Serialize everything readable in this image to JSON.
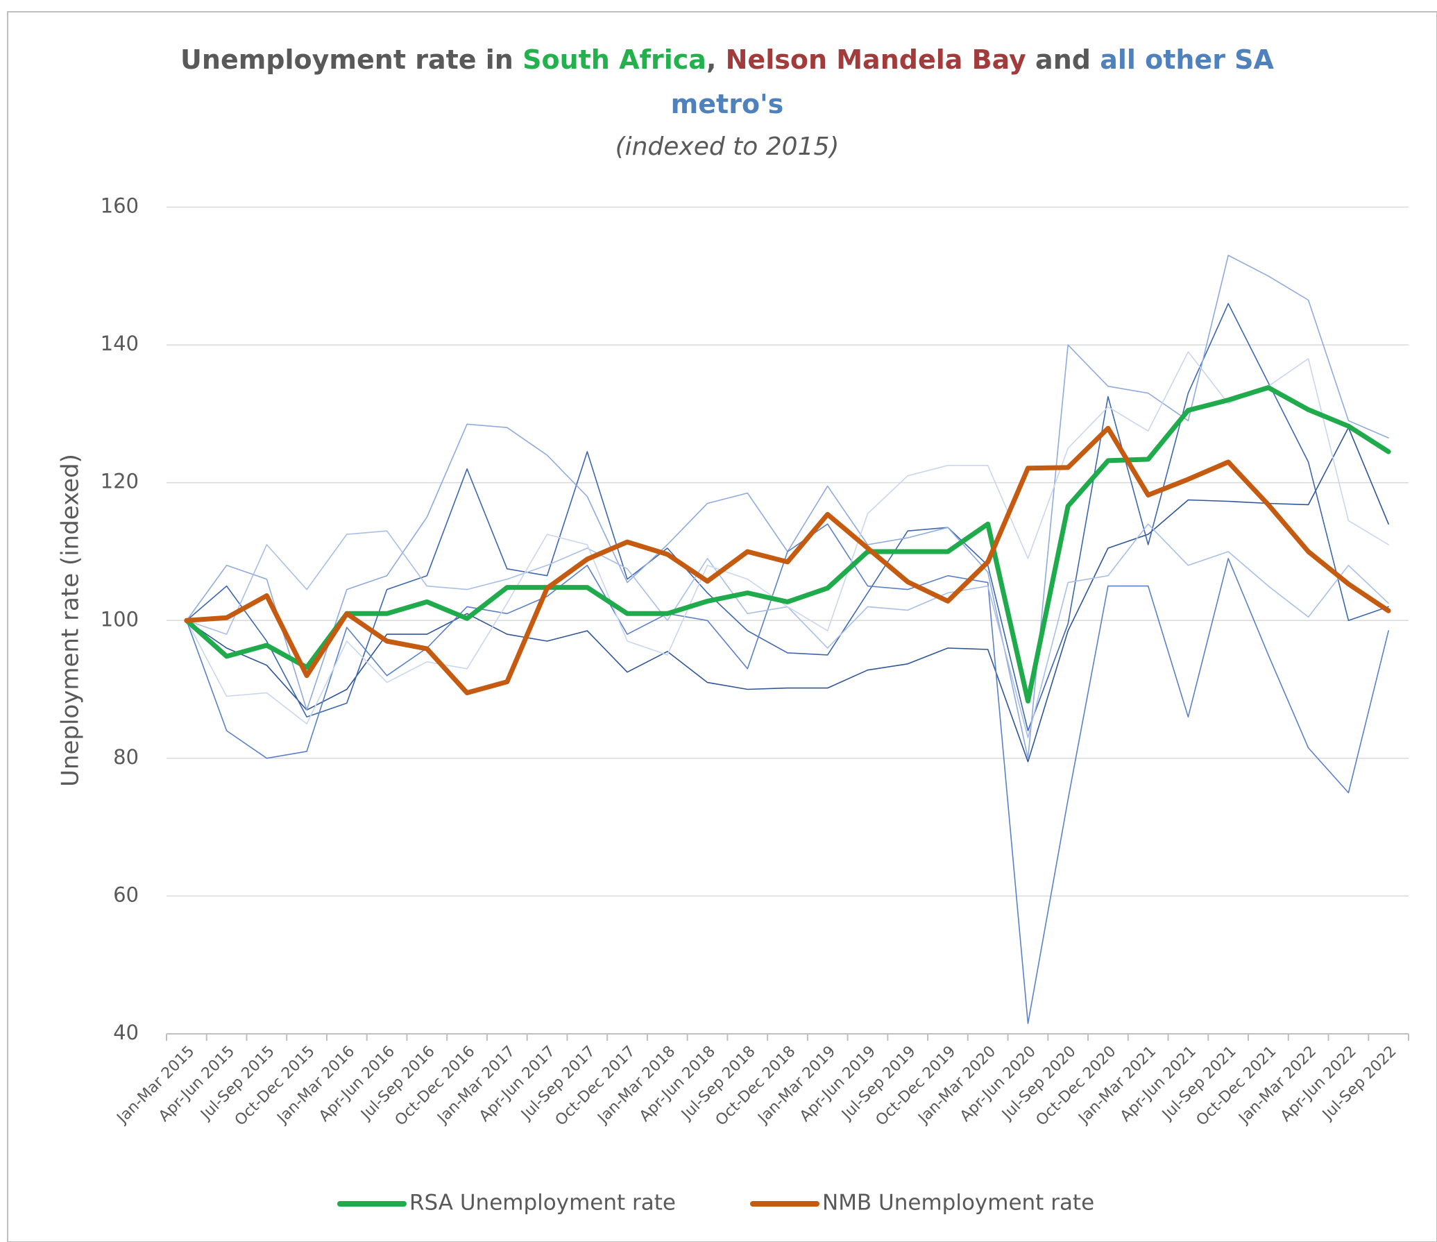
{
  "chart_data": {
    "type": "line",
    "title_parts": [
      {
        "text": "Unemployment rate in ",
        "color": "#595959"
      },
      {
        "text": "South Africa",
        "color": "#22b14c"
      },
      {
        "text": ", ",
        "color": "#595959"
      },
      {
        "text": "Nelson Mandela Bay",
        "color": "#a23b3b"
      },
      {
        "text": " and ",
        "color": "#595959"
      },
      {
        "text": "all other SA",
        "color": "#4f81bd"
      },
      {
        "text": "metro's",
        "color": "#4f81bd"
      }
    ],
    "subtitle": "(indexed to 2015)",
    "y_label": "Uneployment rate (indexed)",
    "categories": [
      "Jan-Mar 2015",
      "Apr-Jun 2015",
      "Jul-Sep 2015",
      "Oct-Dec 2015",
      "Jan-Mar 2016",
      "Apr-Jun 2016",
      "Jul-Sep 2016",
      "Oct-Dec 2016",
      "Jan-Mar 2017",
      "Apr-Jun 2017",
      "Jul-Sep 2017",
      "Oct-Dec 2017",
      "Jan-Mar 2018",
      "Apr-Jun 2018",
      "Jul-Sep 2018",
      "Oct-Dec 2018",
      "Jan-Mar 2019",
      "Apr-Jun 2019",
      "Jul-Sep 2019",
      "Oct-Dec 2019",
      "Jan-Mar 2020",
      "Apr-Jun 2020",
      "Jul-Sep 2020",
      "Oct-Dec 2020",
      "Jan-Mar 2021",
      "Apr-Jun 2021",
      "Jul-Sep 2021",
      "Oct-Dec 2021",
      "Jan-Mar 2022",
      "Apr-Jun 2022",
      "Jul-Sep 2022"
    ],
    "series": [
      {
        "color": "#2f5597",
        "width": 1.6,
        "values": [
          100,
          96,
          93.5,
          87,
          90,
          98,
          98,
          101,
          98,
          97,
          98.5,
          92.5,
          95.5,
          91,
          90,
          90.2,
          90.2,
          92.8,
          93.7,
          96,
          95.8,
          79.5,
          98.5,
          110.5,
          112.5,
          117.5,
          117.3,
          117,
          116.8,
          128,
          114
        ]
      },
      {
        "color": "#3d66b0",
        "width": 1.6,
        "values": [
          100,
          105,
          97,
          86,
          88,
          104.5,
          106.5,
          122,
          107.5,
          106.5,
          124.5,
          106,
          110.5,
          104,
          98.5,
          95.3,
          95,
          104,
          113,
          113.5,
          108,
          84,
          99.5,
          132.5,
          111,
          133,
          146,
          134.5,
          123,
          100,
          102
        ]
      },
      {
        "color": "#8faadc",
        "width": 1.6,
        "values": [
          100,
          108,
          106,
          87,
          104.5,
          106.5,
          115,
          128.5,
          128,
          124,
          118,
          105.5,
          111,
          117,
          118.5,
          110,
          119.5,
          111,
          112,
          113.5,
          107,
          80,
          140,
          134,
          133,
          129,
          153,
          150,
          146.5,
          129,
          126.5
        ]
      },
      {
        "color": "#5b80c8",
        "width": 1.6,
        "values": [
          100,
          84,
          80,
          81,
          99,
          92,
          96,
          102,
          101,
          103.5,
          108,
          98,
          101,
          100,
          93,
          110,
          114,
          105,
          104.5,
          106.5,
          105.5,
          41.5,
          74,
          105,
          105,
          86,
          109,
          95,
          81.5,
          75,
          98.5
        ]
      },
      {
        "color": "#a9bfe6",
        "width": 1.6,
        "values": [
          100,
          98,
          111,
          104.5,
          112.5,
          113,
          105,
          104.5,
          106,
          108,
          110.5,
          107.5,
          100,
          109,
          101,
          102,
          96,
          102,
          101.5,
          104,
          105,
          83,
          105.5,
          106.5,
          114,
          108,
          110,
          105,
          100.5,
          108,
          102.5
        ]
      },
      {
        "color": "#c9d6ee",
        "width": 1.6,
        "values": [
          100,
          89,
          89.5,
          85,
          97,
          91,
          94,
          93,
          102.5,
          112.5,
          111,
          97,
          95,
          108,
          106,
          102,
          98.5,
          115.5,
          121,
          122.5,
          122.5,
          109,
          125,
          131,
          127.5,
          139,
          131.5,
          134,
          138,
          114.5,
          111
        ]
      },
      {
        "name": "RSA Unemployment rate",
        "color": "#1faa4b",
        "width": 7,
        "values": [
          100,
          94.8,
          96.4,
          93.2,
          101,
          101,
          102.7,
          100.3,
          104.8,
          104.8,
          104.8,
          101,
          101,
          102.8,
          104,
          102.7,
          104.7,
          110,
          110,
          110,
          114,
          88.3,
          116.6,
          123.2,
          123.4,
          130.5,
          132,
          133.8,
          130.6,
          128.2,
          124.5
        ]
      },
      {
        "name": "NMB Unemployment rate",
        "color": "#c55a11",
        "width": 7,
        "values": [
          100,
          100.4,
          103.6,
          92,
          101,
          97,
          95.9,
          89.5,
          91.1,
          104.7,
          108.9,
          111.4,
          109.6,
          105.7,
          110,
          108.5,
          115.4,
          110.5,
          105.6,
          102.8,
          108.5,
          122.1,
          122.2,
          127.9,
          118.2,
          120.5,
          123,
          116.8,
          110,
          105.3,
          101.4
        ]
      }
    ],
    "ylim": [
      40,
      160
    ],
    "yticks": [
      40,
      60,
      80,
      100,
      120,
      140,
      160
    ],
    "grid": true,
    "legend": "bottom"
  }
}
